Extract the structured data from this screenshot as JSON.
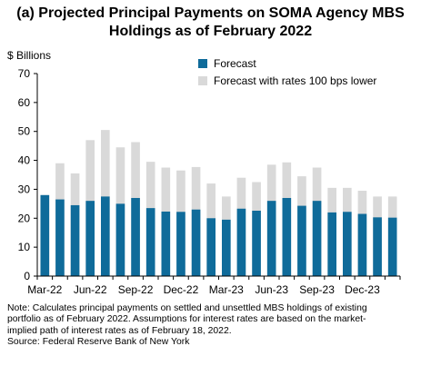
{
  "chart_data": {
    "type": "bar",
    "title_line1": "(a) Projected Principal Payments on SOMA Agency MBS",
    "title_line2": "Holdings as of February 2022",
    "ylabel": "$ Billions",
    "ylim": [
      0,
      70
    ],
    "yticks": [
      "0",
      "10",
      "20",
      "30",
      "40",
      "50",
      "60",
      "70"
    ],
    "categories": [
      "Mar-22",
      "Apr-22",
      "May-22",
      "Jun-22",
      "Jul-22",
      "Aug-22",
      "Sep-22",
      "Oct-22",
      "Nov-22",
      "Dec-22",
      "Jan-23",
      "Feb-23",
      "Mar-23",
      "Apr-23",
      "May-23",
      "Jun-23",
      "Jul-23",
      "Aug-23",
      "Sep-23",
      "Oct-23",
      "Nov-23",
      "Dec-23",
      "Jan-24",
      "Feb-24"
    ],
    "xtick_labels": [
      "Mar-22",
      "Jun-22",
      "Sep-22",
      "Dec-22",
      "Mar-23",
      "Jun-23",
      "Sep-23",
      "Dec-23"
    ],
    "series": [
      {
        "name": "Forecast",
        "color": "#0f6b9a",
        "values": [
          28,
          26.5,
          24.5,
          26,
          27.5,
          25,
          27,
          23.5,
          22.3,
          22.2,
          23,
          20,
          19.5,
          23.3,
          22.6,
          26,
          27,
          24.3,
          26,
          22,
          22.2,
          21.5,
          20.3,
          20.2
        ]
      },
      {
        "name": "Forecast with rates 100 bps lower",
        "color": "#d9d9d9",
        "values": [
          28,
          39,
          35.5,
          47,
          50.5,
          44.5,
          46.3,
          39.5,
          37.5,
          36.5,
          37.7,
          32,
          27.5,
          34,
          32.5,
          38.5,
          39.3,
          34.5,
          37.5,
          30.5,
          30.5,
          29.5,
          27.5,
          27.5
        ]
      }
    ],
    "legend_position": "top-center",
    "grid": false
  },
  "notes": {
    "line1": "Note: Calculates principal payments on settled and unsettled MBS holdings of existing",
    "line2": "portfolio as of February 2022. Assumptions for interest rates are based on the market-",
    "line3": "implied path of interest rates as of February 18, 2022.",
    "source": "Source: Federal Reserve Bank of New York"
  }
}
